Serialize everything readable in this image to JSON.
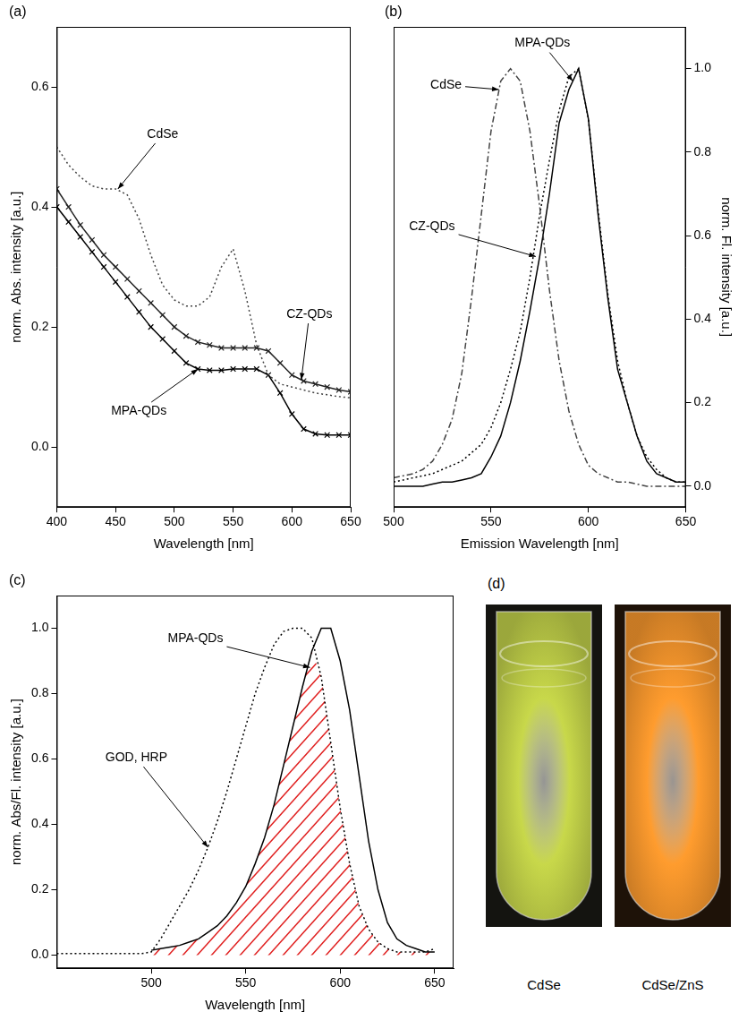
{
  "chart_data": [
    {
      "type": "line",
      "title": "(a)",
      "x_label": "Wavelength [nm]",
      "y_label": "norm. Abs. intensity [a.u.]",
      "xlim": [
        400,
        650
      ],
      "xticks": [
        400,
        450,
        500,
        550,
        600,
        650
      ],
      "ylim": [
        -0.1,
        0.7
      ],
      "yticks": [
        {
          "value": 0,
          "label": "0.0"
        },
        0.2,
        0.4,
        0.6
      ],
      "grid": false,
      "x": [
        400,
        410,
        420,
        430,
        440,
        450,
        460,
        470,
        480,
        490,
        500,
        510,
        520,
        530,
        540,
        550,
        560,
        570,
        580,
        590,
        600,
        610,
        620,
        630,
        640,
        650
      ],
      "series": [
        {
          "name": "CdSe",
          "color": "#444444",
          "line_style": "dotted",
          "values": [
            0.5,
            0.47,
            0.45,
            0.435,
            0.43,
            0.43,
            0.42,
            0.38,
            0.32,
            0.27,
            0.245,
            0.235,
            0.235,
            0.25,
            0.3,
            0.33,
            0.26,
            0.17,
            0.12,
            0.105,
            0.1,
            0.095,
            0.09,
            0.087,
            0.084,
            0.082
          ]
        },
        {
          "name": "CZ-QDs",
          "color": "#222222",
          "line_style": "solid",
          "marker": "x",
          "values": [
            0.43,
            0.4,
            0.37,
            0.345,
            0.32,
            0.3,
            0.28,
            0.26,
            0.24,
            0.22,
            0.2,
            0.185,
            0.175,
            0.17,
            0.165,
            0.165,
            0.165,
            0.165,
            0.16,
            0.14,
            0.12,
            0.11,
            0.105,
            0.1,
            0.095,
            0.092
          ]
        },
        {
          "name": "MPA-QDs",
          "color": "#000000",
          "line_style": "solid",
          "marker": "x",
          "values": [
            0.4,
            0.375,
            0.35,
            0.325,
            0.3,
            0.275,
            0.25,
            0.225,
            0.2,
            0.18,
            0.16,
            0.14,
            0.13,
            0.128,
            0.128,
            0.13,
            0.13,
            0.13,
            0.12,
            0.09,
            0.055,
            0.03,
            0.022,
            0.02,
            0.02,
            0.02
          ]
        }
      ],
      "annotations": [
        {
          "text": "CdSe",
          "x": 452,
          "y": 0.43
        },
        {
          "text": "CZ-QDs",
          "x": 608,
          "y": 0.112
        },
        {
          "text": "MPA-QDs",
          "x": 520,
          "y": 0.13
        }
      ]
    },
    {
      "type": "line",
      "title": "(b)",
      "x_label": "Emission Wavelength [nm]",
      "y2_label": "norm. Fl. intensity [a.u.]",
      "xlim": [
        500,
        650
      ],
      "xticks": [
        500,
        550,
        600,
        650
      ],
      "y2lim": [
        -0.05,
        1.1
      ],
      "y2ticks": [
        {
          "value": 0,
          "label": "0.0"
        },
        0.2,
        0.4,
        0.6,
        0.8,
        {
          "value": 1,
          "label": "1.0"
        }
      ],
      "grid": false,
      "x": [
        500,
        505,
        510,
        515,
        520,
        525,
        530,
        535,
        540,
        545,
        550,
        555,
        560,
        565,
        570,
        575,
        580,
        585,
        590,
        595,
        600,
        605,
        610,
        615,
        620,
        625,
        630,
        635,
        640,
        645,
        650
      ],
      "series": [
        {
          "name": "CdSe",
          "color": "#444444",
          "line_style": "dashdot",
          "axis": "y2",
          "values": [
            0.02,
            0.025,
            0.03,
            0.04,
            0.06,
            0.1,
            0.16,
            0.27,
            0.45,
            0.65,
            0.85,
            0.97,
            1.0,
            0.97,
            0.85,
            0.67,
            0.47,
            0.3,
            0.18,
            0.1,
            0.05,
            0.03,
            0.02,
            0.01,
            0.01,
            0.005,
            0.0,
            0.0,
            0.0,
            0.0,
            0.0
          ]
        },
        {
          "name": "CZ-QDs",
          "color": "#000000",
          "line_style": "dotted",
          "axis": "y2",
          "values": [
            0.01,
            0.015,
            0.02,
            0.025,
            0.03,
            0.04,
            0.05,
            0.06,
            0.08,
            0.1,
            0.14,
            0.2,
            0.28,
            0.37,
            0.5,
            0.65,
            0.78,
            0.9,
            0.98,
            1.0,
            0.88,
            0.66,
            0.46,
            0.3,
            0.2,
            0.12,
            0.07,
            0.04,
            0.02,
            0.01,
            0.01
          ]
        },
        {
          "name": "MPA-QDs",
          "color": "#000000",
          "line_style": "solid",
          "axis": "y2",
          "values": [
            0.0,
            0.0,
            0.0,
            0.0,
            0.005,
            0.01,
            0.01,
            0.015,
            0.02,
            0.03,
            0.07,
            0.12,
            0.2,
            0.3,
            0.42,
            0.55,
            0.7,
            0.87,
            0.95,
            1.0,
            0.88,
            0.65,
            0.45,
            0.28,
            0.2,
            0.12,
            0.06,
            0.03,
            0.02,
            0.01,
            0.01
          ]
        }
      ],
      "annotations": [
        {
          "text": "MPA-QDs",
          "x": 592,
          "y": 0.97
        },
        {
          "text": "CdSe",
          "x": 554,
          "y": 0.95
        },
        {
          "text": "CZ-QDs",
          "x": 573,
          "y": 0.55
        }
      ]
    },
    {
      "type": "line",
      "title": "(c)",
      "x_label": "Wavelength [nm]",
      "y_label": "norm. Abs/Fl. intensity [a.u.]",
      "xlim": [
        450,
        660
      ],
      "xticks": [
        500,
        550,
        600,
        650
      ],
      "ylim": [
        -0.04,
        1.1
      ],
      "yticks": [
        {
          "value": 0,
          "label": "0.0"
        },
        0.2,
        0.4,
        0.6,
        0.8,
        {
          "value": 1,
          "label": "1.0"
        }
      ],
      "grid": false,
      "x": [
        450,
        455,
        460,
        465,
        470,
        475,
        480,
        485,
        490,
        495,
        500,
        505,
        510,
        515,
        520,
        525,
        530,
        535,
        540,
        545,
        550,
        555,
        560,
        565,
        570,
        575,
        580,
        585,
        590,
        595,
        600,
        605,
        610,
        615,
        620,
        625,
        630,
        635,
        640,
        645,
        650
      ],
      "series": [
        {
          "name": "GOD, HRP",
          "color": "#000000",
          "line_style": "dotted",
          "values": [
            0.005,
            0.005,
            0.005,
            0.005,
            0.005,
            0.005,
            0.005,
            0.005,
            0.005,
            0.005,
            0.01,
            0.05,
            0.1,
            0.15,
            0.2,
            0.26,
            0.33,
            0.41,
            0.5,
            0.6,
            0.7,
            0.8,
            0.88,
            0.95,
            0.99,
            1.0,
            1.0,
            0.97,
            0.85,
            0.65,
            0.45,
            0.28,
            0.15,
            0.08,
            0.04,
            0.02,
            0.01,
            0.01,
            0.01,
            0.01,
            0.02
          ]
        },
        {
          "name": "MPA-QDs",
          "color": "#000000",
          "line_style": "solid",
          "values": [
            null,
            null,
            null,
            null,
            null,
            null,
            null,
            null,
            null,
            null,
            0.015,
            0.02,
            0.025,
            0.03,
            0.04,
            0.05,
            0.07,
            0.09,
            0.12,
            0.16,
            0.21,
            0.28,
            0.36,
            0.46,
            0.58,
            0.7,
            0.82,
            0.93,
            1.0,
            1.0,
            0.9,
            0.75,
            0.55,
            0.35,
            0.2,
            0.1,
            0.05,
            0.03,
            0.02,
            0.01,
            0.01
          ]
        }
      ],
      "annotations": [
        {
          "text": "MPA-QDs",
          "x": 584,
          "y": 0.88
        },
        {
          "text": "GOD, HRP",
          "x": 530,
          "y": 0.33
        }
      ]
    }
  ],
  "photo": {
    "title": "(d)",
    "labels": [
      "CdSe",
      "CdSe/ZnS"
    ],
    "colors": [
      "#c8d84a",
      "#ff9c2e"
    ]
  }
}
